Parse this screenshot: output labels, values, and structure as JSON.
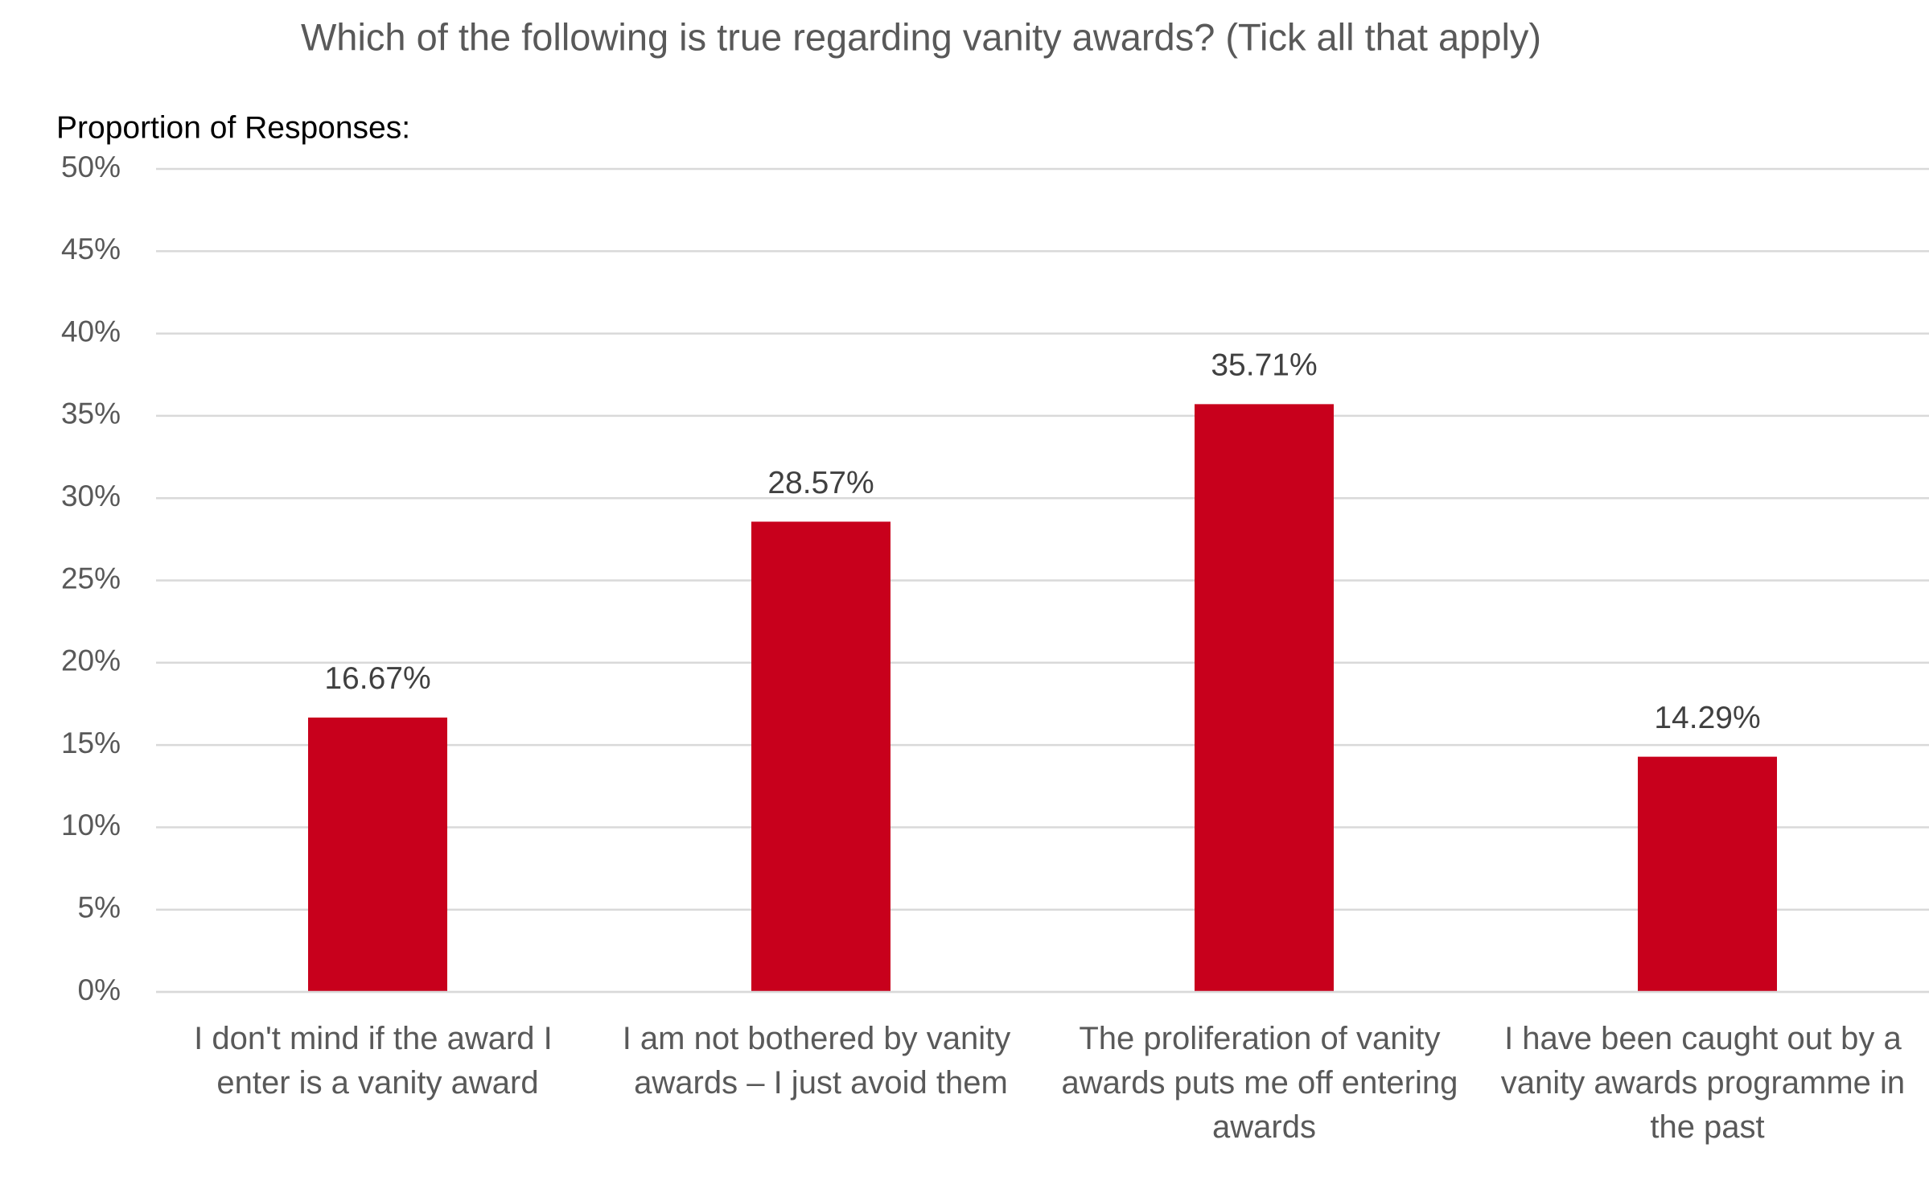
{
  "chart_data": {
    "type": "bar",
    "title": "Which of the following is true regarding vanity awards? (Tick all that apply)",
    "y_axis_label": "Proportion of Responses:",
    "categories": [
      "I don't mind if the award I enter is a vanity award",
      "I am not bothered by vanity awards – I just avoid them",
      "The proliferation of vanity awards puts me off entering awards",
      "I have been caught out by a vanity awards programme in the past"
    ],
    "values": [
      16.67,
      28.57,
      35.71,
      14.29
    ],
    "value_labels": [
      "16.67%",
      "28.57%",
      "35.71%",
      "14.29%"
    ],
    "color": "#c8001c",
    "ylim": [
      0,
      50
    ],
    "yticks": [
      {
        "value": 0,
        "label": "0%"
      },
      {
        "value": 5,
        "label": "5%"
      },
      {
        "value": 10,
        "label": "10%"
      },
      {
        "value": 15,
        "label": "15%"
      },
      {
        "value": 20,
        "label": "20%"
      },
      {
        "value": 25,
        "label": "25%"
      },
      {
        "value": 30,
        "label": "30%"
      },
      {
        "value": 35,
        "label": "35%"
      },
      {
        "value": 40,
        "label": "40%"
      },
      {
        "value": 45,
        "label": "45%"
      },
      {
        "value": 50,
        "label": "50%"
      }
    ],
    "grid": true
  }
}
